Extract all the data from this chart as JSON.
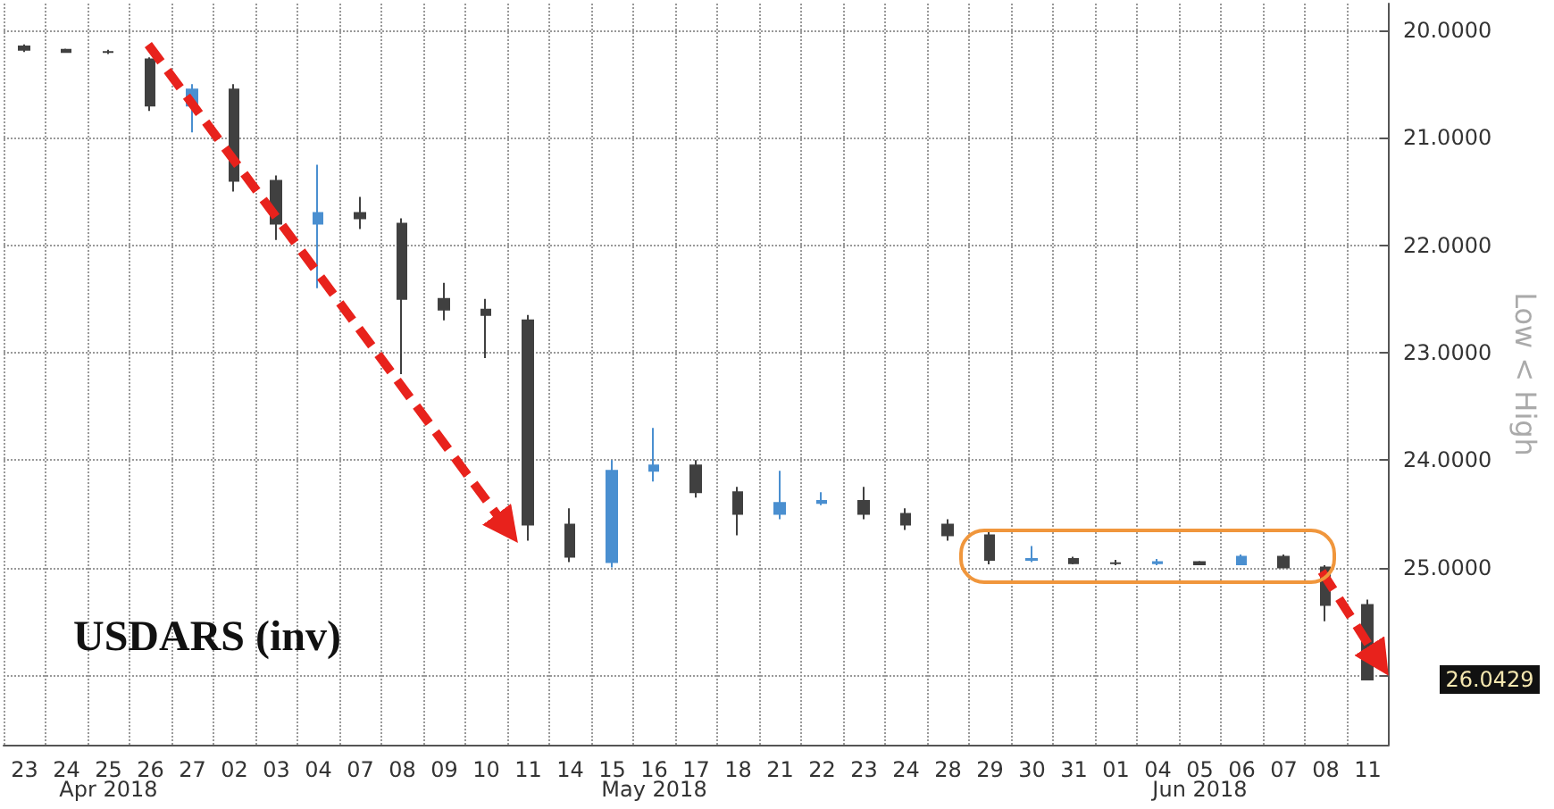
{
  "chart_data": {
    "type": "candlestick",
    "title": "USDARS (inv)",
    "ylabel": "Low < High",
    "categories": [
      "23",
      "24",
      "25",
      "26",
      "27",
      "02",
      "03",
      "04",
      "07",
      "08",
      "09",
      "10",
      "11",
      "14",
      "15",
      "16",
      "17",
      "18",
      "21",
      "22",
      "23",
      "24",
      "28",
      "29",
      "30",
      "31",
      "01",
      "04",
      "05",
      "06",
      "07",
      "08",
      "11"
    ],
    "ohlc": [
      [
        20.15,
        20.2,
        20.13,
        20.18
      ],
      [
        20.18,
        20.2,
        20.17,
        20.2
      ],
      [
        20.2,
        20.22,
        20.18,
        20.2
      ],
      [
        20.27,
        20.75,
        20.25,
        20.7
      ],
      [
        20.7,
        20.95,
        20.5,
        20.55
      ],
      [
        20.55,
        21.5,
        20.5,
        21.4
      ],
      [
        21.4,
        21.95,
        21.35,
        21.8
      ],
      [
        21.8,
        22.4,
        21.25,
        21.7
      ],
      [
        21.7,
        21.85,
        21.55,
        21.75
      ],
      [
        21.8,
        23.2,
        21.75,
        22.5
      ],
      [
        22.5,
        22.7,
        22.35,
        22.6
      ],
      [
        22.6,
        23.05,
        22.5,
        22.65
      ],
      [
        22.7,
        24.75,
        22.65,
        24.6
      ],
      [
        24.6,
        24.95,
        24.45,
        24.9
      ],
      [
        24.95,
        25.0,
        24.0,
        24.1
      ],
      [
        24.1,
        24.2,
        23.7,
        24.05
      ],
      [
        24.05,
        24.35,
        24.0,
        24.3
      ],
      [
        24.3,
        24.7,
        24.25,
        24.5
      ],
      [
        24.5,
        24.55,
        24.1,
        24.4
      ],
      [
        24.4,
        24.42,
        24.3,
        24.38
      ],
      [
        24.38,
        24.55,
        24.25,
        24.5
      ],
      [
        24.5,
        24.65,
        24.45,
        24.6
      ],
      [
        24.6,
        24.75,
        24.55,
        24.7
      ],
      [
        24.7,
        24.97,
        24.65,
        24.93
      ],
      [
        24.93,
        24.95,
        24.8,
        24.92
      ],
      [
        24.92,
        24.97,
        24.9,
        24.96
      ],
      [
        24.96,
        24.98,
        24.93,
        24.96
      ],
      [
        24.96,
        24.98,
        24.92,
        24.95
      ],
      [
        24.95,
        24.98,
        24.94,
        24.97
      ],
      [
        24.97,
        24.98,
        24.88,
        24.9
      ],
      [
        24.9,
        25.0,
        24.88,
        25.0
      ],
      [
        25.0,
        25.5,
        24.98,
        25.35
      ],
      [
        25.35,
        26.05,
        25.3,
        26.0429
      ]
    ],
    "colors": [
      "#404040",
      "#404040",
      "#404040",
      "#404040",
      "#4a8fd0",
      "#404040",
      "#404040",
      "#4a8fd0",
      "#404040",
      "#404040",
      "#404040",
      "#404040",
      "#404040",
      "#404040",
      "#4a8fd0",
      "#4a8fd0",
      "#404040",
      "#404040",
      "#4a8fd0",
      "#4a8fd0",
      "#404040",
      "#404040",
      "#404040",
      "#404040",
      "#4a8fd0",
      "#404040",
      "#404040",
      "#4a8fd0",
      "#404040",
      "#4a8fd0",
      "#404040",
      "#404040",
      "#404040"
    ],
    "ylim": [
      26.65,
      19.75
    ],
    "yticks": [
      {
        "value": 20,
        "label": "20.0000"
      },
      {
        "value": 21,
        "label": "21.0000"
      },
      {
        "value": 22,
        "label": "22.0000"
      },
      {
        "value": 23,
        "label": "23.0000"
      },
      {
        "value": 24,
        "label": "24.0000"
      },
      {
        "value": 25,
        "label": "25.0000"
      },
      {
        "value": 26,
        "label": null
      }
    ],
    "grid": true,
    "annotations": [
      "Apr 2018",
      "May 2018",
      "Jun 2018",
      "26.0429"
    ]
  }
}
